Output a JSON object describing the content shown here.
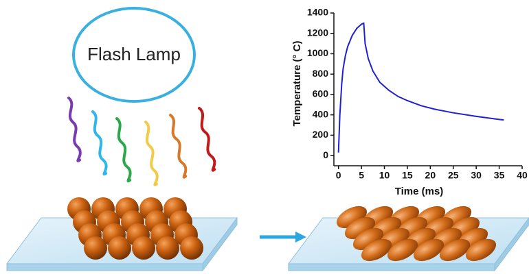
{
  "diagram": {
    "lamp_label": "Flash Lamp"
  },
  "chart_data": {
    "type": "line",
    "x_label": "Time (ms)",
    "y_label": "Temperature (° C)",
    "xlim": [
      -1,
      40
    ],
    "ylim": [
      -100,
      1400
    ],
    "xticks": [
      0,
      5,
      10,
      15,
      20,
      25,
      30,
      35,
      40
    ],
    "yticks": [
      0,
      200,
      400,
      600,
      800,
      1000,
      1200,
      1400
    ],
    "series": [
      {
        "color": "#1f1fd6",
        "x": [
          0,
          0.3,
          0.7,
          1,
          1.5,
          2,
          3,
          4,
          5,
          5.5,
          5.8,
          6.5,
          7.5,
          9,
          11,
          13,
          15,
          18,
          21,
          25,
          30,
          35,
          36
        ],
        "values": [
          30,
          400,
          700,
          850,
          980,
          1070,
          1180,
          1250,
          1290,
          1300,
          1100,
          950,
          830,
          720,
          640,
          580,
          540,
          490,
          455,
          420,
          385,
          355,
          350
        ]
      }
    ]
  }
}
